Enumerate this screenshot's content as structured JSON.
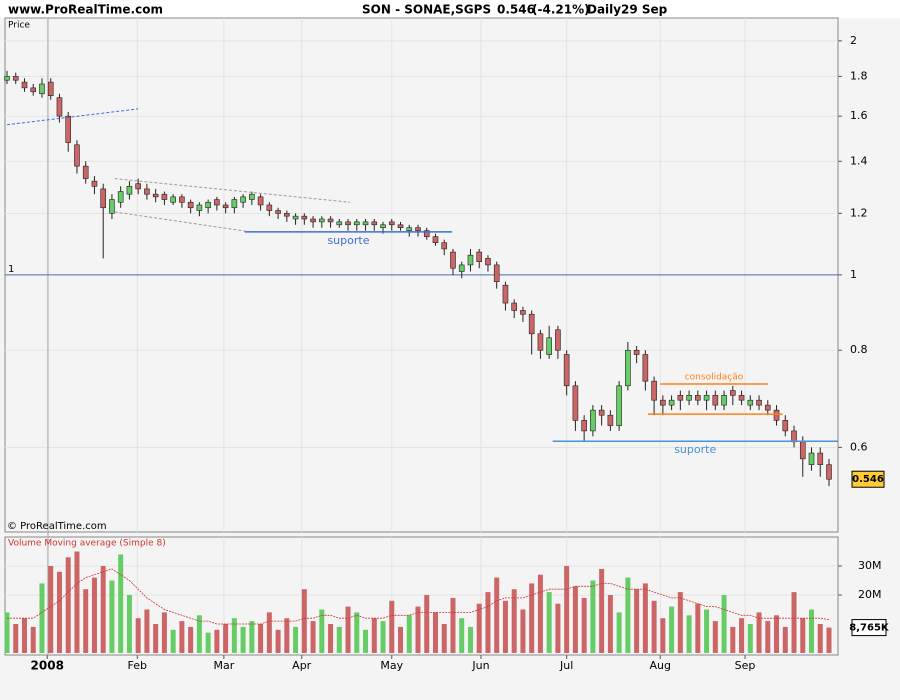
{
  "header": {
    "site": "www.ProRealTime.com",
    "symbol": "SON - SONAE,SGPS",
    "last": 0.546,
    "change": "(-4.21%)",
    "period": "Daily",
    "date": "29 Sep"
  },
  "chart_data": [
    {
      "type": "candlestick",
      "y_label": "Price",
      "copyright": "© ProRealTime.com",
      "log_scale": true,
      "grid": true,
      "up_color": "#66cc66",
      "down_color": "#cc6666",
      "ylim": [
        0.467,
        2.14
      ],
      "yticks": [
        2,
        1.8,
        1.6,
        1.4,
        1.2,
        1,
        0.8,
        0.6
      ],
      "xlim": [
        0,
        95
      ],
      "xticks": [
        {
          "value": 4.6,
          "label": "2008"
        },
        {
          "value": 14.9,
          "label": "Feb"
        },
        {
          "value": 24.8,
          "label": "Mar"
        },
        {
          "value": 33.7,
          "label": "Apr"
        },
        {
          "value": 44,
          "label": "May"
        },
        {
          "value": 54.2,
          "label": "Jun"
        },
        {
          "value": 64,
          "label": "Jul"
        },
        {
          "value": 74.7,
          "label": "Aug"
        },
        {
          "value": 84.4,
          "label": "Sep"
        }
      ],
      "ref_line": 1,
      "ref_color": "#4a6fb5",
      "open": [
        1.78,
        1.8,
        1.77,
        1.74,
        1.71,
        1.77,
        1.69,
        1.6,
        1.47,
        1.38,
        1.32,
        1.29,
        1.2,
        1.24,
        1.27,
        1.31,
        1.29,
        1.27,
        1.27,
        1.24,
        1.26,
        1.24,
        1.21,
        1.22,
        1.25,
        1.23,
        1.22,
        1.24,
        1.25,
        1.26,
        1.23,
        1.21,
        1.2,
        1.18,
        1.19,
        1.18,
        1.17,
        1.18,
        1.16,
        1.17,
        1.16,
        1.16,
        1.17,
        1.15,
        1.17,
        1.16,
        1.14,
        1.15,
        1.14,
        1.12,
        1.1,
        1.07,
        1.01,
        1.03,
        1.07,
        1.05,
        1.03,
        0.97,
        0.92,
        0.9,
        0.89,
        0.84,
        0.79,
        0.85,
        0.79,
        0.72,
        0.65,
        0.63,
        0.67,
        0.66,
        0.64,
        0.72,
        0.8,
        0.79,
        0.73,
        0.69,
        0.68,
        0.7,
        0.69,
        0.7,
        0.69,
        0.7,
        0.68,
        0.71,
        0.7,
        0.68,
        0.69,
        0.68,
        0.67,
        0.65,
        0.63,
        0.61,
        0.57,
        0.59,
        0.57
      ],
      "high": [
        1.83,
        1.82,
        1.79,
        1.76,
        1.79,
        1.79,
        1.71,
        1.62,
        1.49,
        1.4,
        1.34,
        1.31,
        1.27,
        1.3,
        1.32,
        1.33,
        1.31,
        1.29,
        1.28,
        1.27,
        1.27,
        1.25,
        1.24,
        1.25,
        1.26,
        1.24,
        1.26,
        1.27,
        1.28,
        1.27,
        1.24,
        1.22,
        1.21,
        1.2,
        1.2,
        1.19,
        1.19,
        1.19,
        1.18,
        1.18,
        1.18,
        1.18,
        1.18,
        1.17,
        1.18,
        1.17,
        1.16,
        1.16,
        1.15,
        1.13,
        1.11,
        1.08,
        1.04,
        1.08,
        1.08,
        1.06,
        1.04,
        0.98,
        0.93,
        0.91,
        0.9,
        0.85,
        0.86,
        0.86,
        0.8,
        0.73,
        0.66,
        0.68,
        0.68,
        0.67,
        0.73,
        0.82,
        0.81,
        0.8,
        0.74,
        0.7,
        0.7,
        0.71,
        0.71,
        0.71,
        0.71,
        0.71,
        0.71,
        0.72,
        0.71,
        0.7,
        0.7,
        0.69,
        0.68,
        0.66,
        0.64,
        0.62,
        0.6,
        0.6,
        0.58
      ],
      "low": [
        1.76,
        1.76,
        1.72,
        1.7,
        1.69,
        1.68,
        1.57,
        1.44,
        1.35,
        1.31,
        1.27,
        1.05,
        1.18,
        1.22,
        1.25,
        1.27,
        1.25,
        1.24,
        1.23,
        1.23,
        1.22,
        1.2,
        1.19,
        1.2,
        1.21,
        1.2,
        1.2,
        1.22,
        1.23,
        1.21,
        1.19,
        1.18,
        1.17,
        1.16,
        1.16,
        1.15,
        1.15,
        1.15,
        1.15,
        1.14,
        1.14,
        1.14,
        1.14,
        1.13,
        1.14,
        1.14,
        1.12,
        1.12,
        1.11,
        1.09,
        1.06,
        1.0,
        0.99,
        1.01,
        1.02,
        1.01,
        0.96,
        0.9,
        0.88,
        0.87,
        0.79,
        0.78,
        0.78,
        0.78,
        0.7,
        0.63,
        0.61,
        0.62,
        0.64,
        0.63,
        0.63,
        0.71,
        0.77,
        0.71,
        0.66,
        0.66,
        0.67,
        0.67,
        0.68,
        0.68,
        0.67,
        0.67,
        0.67,
        0.68,
        0.68,
        0.67,
        0.67,
        0.66,
        0.64,
        0.62,
        0.6,
        0.55,
        0.56,
        0.55,
        0.535
      ],
      "close": [
        1.8,
        1.78,
        1.74,
        1.72,
        1.76,
        1.7,
        1.6,
        1.48,
        1.38,
        1.33,
        1.3,
        1.22,
        1.25,
        1.28,
        1.3,
        1.29,
        1.27,
        1.26,
        1.25,
        1.26,
        1.24,
        1.22,
        1.23,
        1.24,
        1.23,
        1.22,
        1.25,
        1.26,
        1.27,
        1.23,
        1.21,
        1.2,
        1.19,
        1.19,
        1.18,
        1.17,
        1.18,
        1.17,
        1.17,
        1.16,
        1.17,
        1.17,
        1.16,
        1.16,
        1.16,
        1.15,
        1.15,
        1.14,
        1.12,
        1.1,
        1.08,
        1.02,
        1.03,
        1.06,
        1.04,
        1.03,
        0.98,
        0.92,
        0.9,
        0.89,
        0.84,
        0.8,
        0.83,
        0.8,
        0.72,
        0.65,
        0.63,
        0.67,
        0.66,
        0.64,
        0.72,
        0.8,
        0.79,
        0.73,
        0.69,
        0.68,
        0.69,
        0.69,
        0.7,
        0.69,
        0.7,
        0.68,
        0.7,
        0.7,
        0.69,
        0.69,
        0.68,
        0.67,
        0.65,
        0.63,
        0.61,
        0.58,
        0.59,
        0.57,
        0.546
      ],
      "annotations": [
        {
          "from": [
            0,
            1.56
          ],
          "to": [
            15,
            1.635
          ],
          "color": "#3b6fd4",
          "dash": true
        },
        {
          "from": [
            12.3,
            1.33
          ],
          "to": [
            39.2,
            1.24
          ],
          "color": "#999999",
          "dash": true
        },
        {
          "from": [
            12.3,
            1.205
          ],
          "to": [
            27.8,
            1.136
          ],
          "color": "#999999",
          "dash": true
        },
        {
          "label": "suporte",
          "from": [
            27.2,
            1.136
          ],
          "to": [
            50.9,
            1.136
          ],
          "color": "#3b6fd4",
          "dash": false
        },
        {
          "label": "suporte",
          "from": [
            62.4,
            0.611
          ],
          "to": [
            95,
            0.611
          ],
          "color": "#4a90d9",
          "dash": false
        },
        {
          "label": "consolidação",
          "from": [
            74.7,
            0.724
          ],
          "to": [
            87,
            0.724
          ],
          "color": "#ff7f1a",
          "dash": false
        },
        {
          "from": [
            73.3,
            0.662
          ],
          "to": [
            88.7,
            0.662
          ],
          "color": "#ff7f1a",
          "dash": false
        }
      ]
    },
    {
      "type": "bar",
      "title": "Volume Moving average (Simple 8)",
      "grid": true,
      "ylim": [
        0,
        40
      ],
      "yticks": [
        {
          "value": 30,
          "label": "30M"
        },
        {
          "value": 20,
          "label": "20M"
        }
      ],
      "values": [
        14,
        10,
        12,
        9,
        24,
        30,
        28,
        33,
        35,
        22,
        26,
        30,
        25,
        34,
        20,
        12,
        15,
        10,
        14,
        8,
        11,
        9,
        13,
        7,
        8,
        10,
        12,
        9,
        11,
        10,
        14,
        8,
        12,
        9,
        22,
        11,
        15,
        10,
        9,
        16,
        14,
        8,
        12,
        11,
        18,
        9,
        13,
        16,
        20,
        14,
        10,
        19,
        12,
        9,
        17,
        21,
        26,
        18,
        22,
        15,
        24,
        27,
        21,
        17,
        30,
        23,
        19,
        25,
        29,
        20,
        14,
        26,
        22,
        24,
        18,
        12,
        16,
        21,
        13,
        17,
        15,
        11,
        20,
        9,
        12,
        10,
        14,
        11,
        13,
        9,
        21,
        12,
        15,
        10,
        8.765
      ],
      "last_label": "8,765K",
      "ma_color": "#cc3333",
      "ma": [
        12,
        12,
        12,
        12,
        14,
        16,
        18,
        21,
        24,
        26,
        27,
        28,
        29,
        27,
        25,
        22,
        19,
        17,
        15,
        14,
        13,
        12,
        11,
        11,
        10,
        10,
        10,
        10,
        10,
        10,
        11,
        11,
        11,
        11,
        12,
        12,
        13,
        13,
        12,
        12,
        13,
        12,
        12,
        12,
        13,
        13,
        13,
        14,
        14,
        14,
        14,
        14,
        14,
        14,
        15,
        16,
        18,
        19,
        19,
        19,
        20,
        21,
        22,
        22,
        22,
        23,
        23,
        23,
        24,
        24,
        23,
        22,
        22,
        22,
        21,
        20,
        19,
        19,
        18,
        17,
        16,
        16,
        15,
        14,
        13,
        13,
        12,
        12,
        12,
        12,
        12,
        12,
        12,
        12,
        11.5
      ]
    }
  ]
}
